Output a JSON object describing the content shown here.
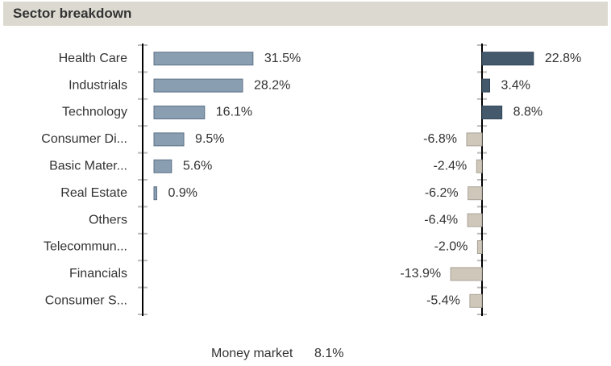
{
  "header": {
    "title": "Sector breakdown"
  },
  "chart_data": [
    {
      "type": "bar",
      "orientation": "horizontal",
      "categories": [
        "Health Care",
        "Industrials",
        "Technology",
        "Consumer Di...",
        "Basic Mater...",
        "Real Estate",
        "Others",
        "Telecommun...",
        "Financials",
        "Consumer S..."
      ],
      "values": [
        31.5,
        28.2,
        16.1,
        9.5,
        5.6,
        0.9,
        null,
        null,
        null,
        null
      ],
      "value_labels": [
        "31.5%",
        "28.2%",
        "16.1%",
        "9.5%",
        "5.6%",
        "0.9%",
        null,
        null,
        null,
        null
      ],
      "color": "#8a9eb2",
      "xlim": [
        0,
        40
      ]
    },
    {
      "type": "bar",
      "orientation": "horizontal",
      "values": [
        22.8,
        3.4,
        8.8,
        -6.8,
        -2.4,
        -6.2,
        -6.4,
        -2.0,
        -13.9,
        -5.4
      ],
      "value_labels": [
        "22.8%",
        "3.4%",
        "8.8%",
        "-6.8%",
        "-2.4%",
        "-6.2%",
        "-6.4%",
        "-2.0%",
        "-13.9%",
        "-5.4%"
      ],
      "positive_color": "#44596b",
      "negative_color": "#cfc7b9",
      "xlim": [
        -20,
        25
      ]
    }
  ],
  "footer": {
    "label": "Money market",
    "value": "8.1%"
  }
}
